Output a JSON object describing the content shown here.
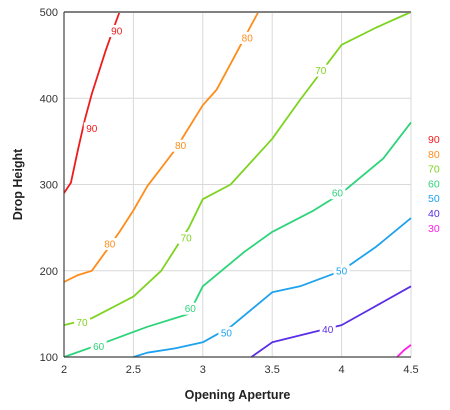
{
  "chart_data": {
    "type": "line",
    "xlabel": "Opening Aperture",
    "ylabel": "Drop Height",
    "xlim": [
      2,
      4.5
    ],
    "ylim": [
      100,
      500
    ],
    "x_ticks": [
      2,
      2.5,
      3,
      3.5,
      4,
      4.5
    ],
    "x_tick_labels": [
      "2",
      "2.5",
      "3",
      "3.5",
      "4",
      "4.5"
    ],
    "y_ticks": [
      100,
      200,
      300,
      400,
      500
    ],
    "y_tick_labels": [
      "100",
      "200",
      "300",
      "400",
      "500"
    ],
    "grid": true,
    "legend": {
      "position": "right",
      "entries": [
        "90",
        "80",
        "70",
        "60",
        "50",
        "40",
        "30"
      ]
    },
    "series": [
      {
        "name": "90",
        "color": "#ee1c1c",
        "x": [
          2.0,
          2.05,
          2.1,
          2.15,
          2.2,
          2.25,
          2.3,
          2.35,
          2.4
        ],
        "y": [
          290,
          302,
          340,
          375,
          405,
          430,
          455,
          478,
          500
        ],
        "labels": [
          {
            "text": "90",
            "x": 2.38,
            "y": 478
          },
          {
            "text": "90",
            "x": 2.2,
            "y": 365
          }
        ]
      },
      {
        "name": "80",
        "color": "#ff8c1a",
        "x": [
          2.0,
          2.1,
          2.2,
          2.3,
          2.4,
          2.5,
          2.6,
          2.8,
          3.0,
          3.1,
          3.2,
          3.3,
          3.4
        ],
        "y": [
          187,
          195,
          200,
          222,
          245,
          270,
          298,
          340,
          392,
          410,
          440,
          470,
          500
        ],
        "labels": [
          {
            "text": "80",
            "x": 3.32,
            "y": 470
          },
          {
            "text": "80",
            "x": 2.84,
            "y": 345
          },
          {
            "text": "80",
            "x": 2.33,
            "y": 231
          }
        ]
      },
      {
        "name": "70",
        "color": "#7ed321",
        "x": [
          2.0,
          2.2,
          2.5,
          2.7,
          2.9,
          3.0,
          3.2,
          3.5,
          3.7,
          4.0,
          4.25,
          4.5
        ],
        "y": [
          137,
          145,
          170,
          200,
          250,
          283,
          300,
          353,
          398,
          462,
          482,
          500
        ],
        "labels": [
          {
            "text": "70",
            "x": 3.85,
            "y": 432
          },
          {
            "text": "70",
            "x": 2.88,
            "y": 238
          },
          {
            "text": "70",
            "x": 2.13,
            "y": 140
          }
        ]
      },
      {
        "name": "60",
        "color": "#2ed47a",
        "x": [
          2.0,
          2.3,
          2.6,
          2.9,
          3.0,
          3.3,
          3.5,
          3.8,
          4.0,
          4.3,
          4.5
        ],
        "y": [
          100,
          117,
          135,
          150,
          182,
          222,
          245,
          270,
          290,
          330,
          372
        ],
        "labels": [
          {
            "text": "60",
            "x": 3.97,
            "y": 290
          },
          {
            "text": "60",
            "x": 2.91,
            "y": 156
          },
          {
            "text": "60",
            "x": 2.25,
            "y": 112
          }
        ]
      },
      {
        "name": "50",
        "color": "#1fa2ee",
        "x": [
          2.5,
          2.6,
          2.8,
          3.0,
          3.2,
          3.5,
          3.7,
          4.0,
          4.25,
          4.5
        ],
        "y": [
          100,
          105,
          110,
          117,
          135,
          175,
          182,
          200,
          228,
          261
        ],
        "labels": [
          {
            "text": "50",
            "x": 4.0,
            "y": 200
          },
          {
            "text": "50",
            "x": 3.17,
            "y": 128
          }
        ]
      },
      {
        "name": "40",
        "color": "#5a2ee6",
        "x": [
          3.35,
          3.5,
          3.7,
          4.0,
          4.2,
          4.5
        ],
        "y": [
          100,
          117,
          125,
          137,
          155,
          182
        ],
        "labels": [
          {
            "text": "40",
            "x": 3.9,
            "y": 132
          }
        ]
      },
      {
        "name": "30",
        "color": "#ff1ee8",
        "x": [
          4.4,
          4.45,
          4.5
        ],
        "y": [
          100,
          108,
          114
        ],
        "labels": []
      }
    ]
  }
}
